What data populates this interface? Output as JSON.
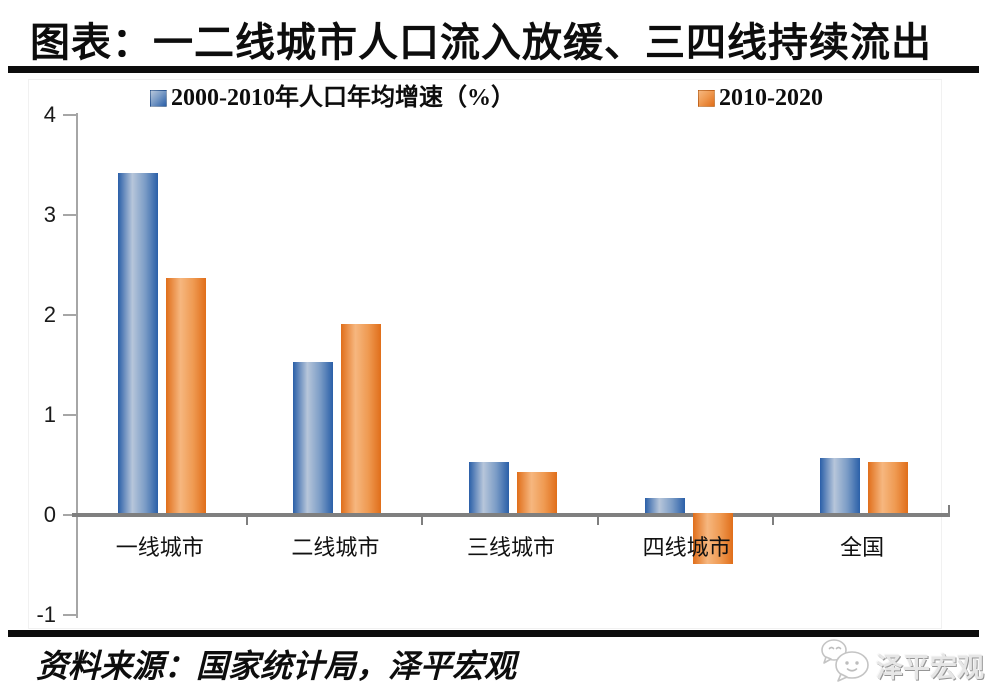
{
  "title": "图表：一二线城市人口流入放缓、三四线持续流出",
  "chart_data": {
    "type": "bar",
    "title": "图表：一二线城市人口流入放缓、三四线持续流出",
    "categories": [
      "一线城市",
      "二线城市",
      "三线城市",
      "四线城市",
      "全国"
    ],
    "series": [
      {
        "name": "2000-2010年人口年均增速（%）",
        "color_dark": "#2a5fa8",
        "color_mid": "#7b9cc6",
        "color_light": "#b7c6da",
        "values": [
          3.42,
          1.53,
          0.53,
          0.17,
          0.57
        ]
      },
      {
        "name": "2010-2020",
        "color_dark": "#e06e1a",
        "color_mid": "#ef9a52",
        "color_light": "#f6b77f",
        "values": [
          2.37,
          1.91,
          0.43,
          -0.49,
          0.53
        ]
      }
    ],
    "xlabel": "",
    "ylabel": "",
    "ylim": [
      -1,
      4
    ],
    "yticks": [
      4,
      3,
      2,
      1,
      0,
      -1
    ],
    "grid": false,
    "legend_position": "top",
    "axis_color": "#7f7f7f",
    "tick_color": "#a6a6a6"
  },
  "footer": {
    "source_label": "资料来源：国家统计局，泽平宏观"
  },
  "watermark": {
    "label": "泽平宏观",
    "icon": "wechat-chat-bubbles-icon"
  }
}
